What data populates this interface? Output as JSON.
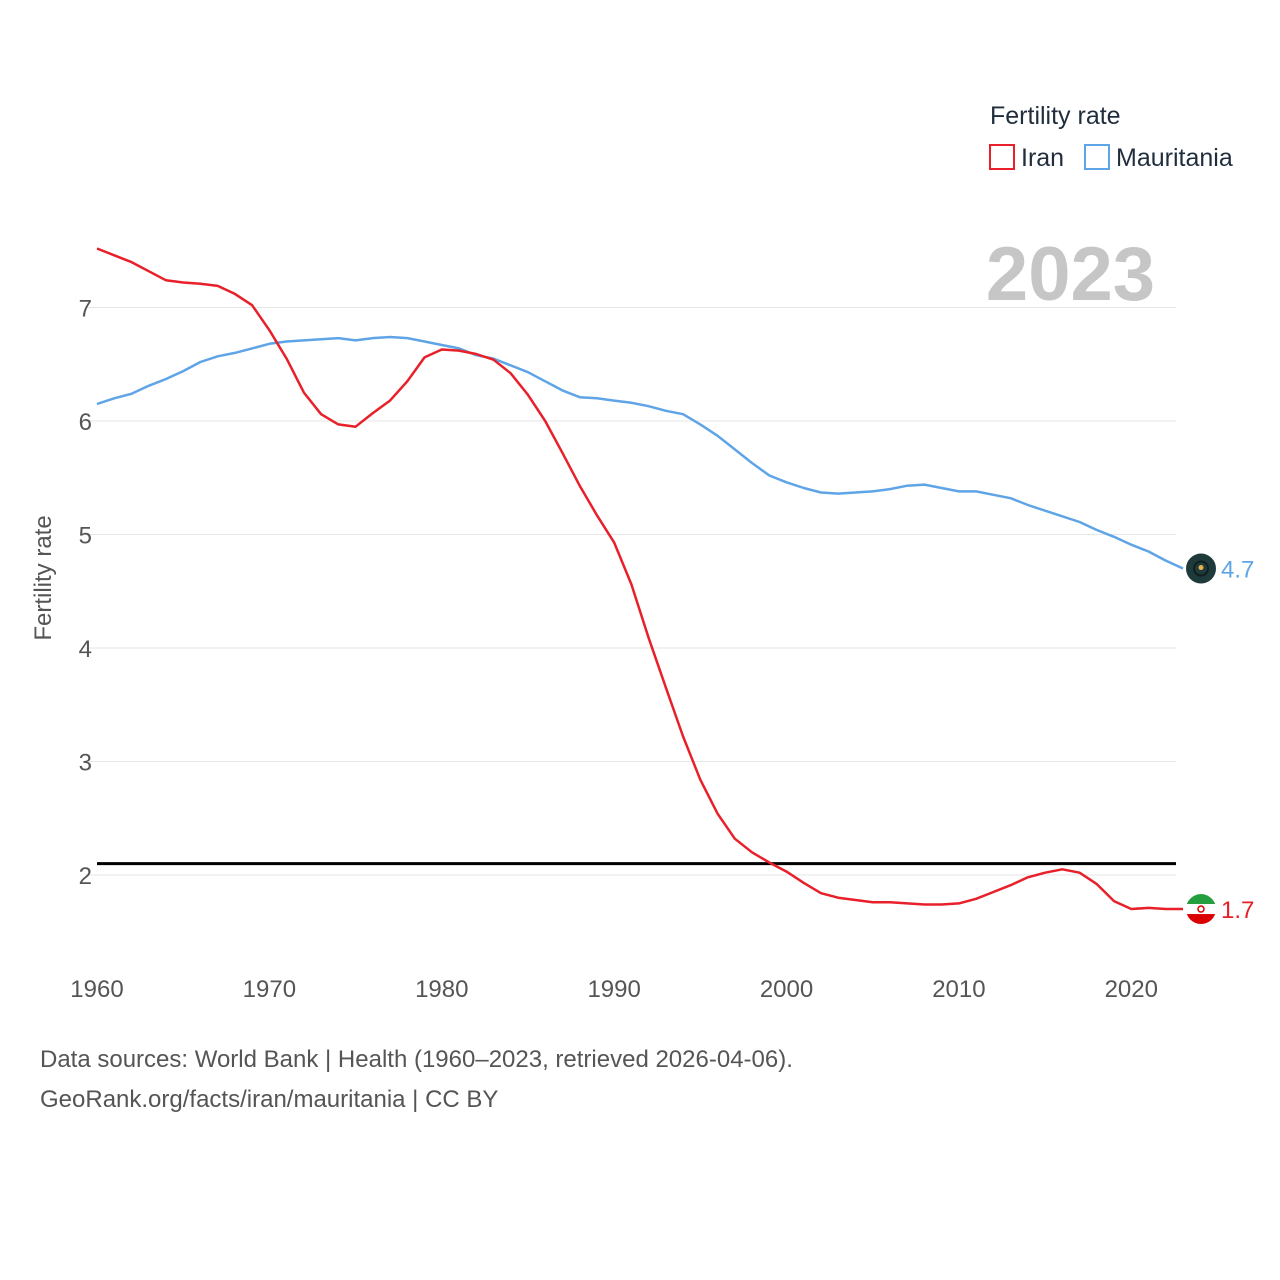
{
  "chart_data": {
    "type": "line",
    "title": "",
    "xlabel": "",
    "ylabel": "Fertility rate",
    "legend_title": "Fertility rate",
    "legend_position": "top-right",
    "year_label": "2023",
    "xlim": [
      1960,
      2023
    ],
    "ylim": [
      1.3,
      7.6
    ],
    "x_ticks": [
      1960,
      1970,
      1980,
      1990,
      2000,
      2010,
      2020
    ],
    "y_ticks": [
      2,
      3,
      4,
      5,
      6,
      7
    ],
    "grid": true,
    "reference_line": {
      "y": 2.1,
      "color": "#000000"
    },
    "x": [
      1960,
      1961,
      1962,
      1963,
      1964,
      1965,
      1966,
      1967,
      1968,
      1969,
      1970,
      1971,
      1972,
      1973,
      1974,
      1975,
      1976,
      1977,
      1978,
      1979,
      1980,
      1981,
      1982,
      1983,
      1984,
      1985,
      1986,
      1987,
      1988,
      1989,
      1990,
      1991,
      1992,
      1993,
      1994,
      1995,
      1996,
      1997,
      1998,
      1999,
      2000,
      2001,
      2002,
      2003,
      2004,
      2005,
      2006,
      2007,
      2008,
      2009,
      2010,
      2011,
      2012,
      2013,
      2014,
      2015,
      2016,
      2017,
      2018,
      2019,
      2020,
      2021,
      2022,
      2023
    ],
    "series": [
      {
        "name": "Iran",
        "color": "#e8202a",
        "end_label": "1.7",
        "values": [
          7.52,
          7.46,
          7.4,
          7.32,
          7.24,
          7.22,
          7.21,
          7.19,
          7.12,
          7.02,
          6.8,
          6.55,
          6.25,
          6.06,
          5.97,
          5.95,
          6.07,
          6.18,
          6.35,
          6.56,
          6.63,
          6.62,
          6.59,
          6.54,
          6.42,
          6.23,
          6.0,
          5.72,
          5.43,
          5.17,
          4.93,
          4.56,
          4.09,
          3.65,
          3.22,
          2.84,
          2.54,
          2.32,
          2.2,
          2.11,
          2.03,
          1.93,
          1.84,
          1.8,
          1.78,
          1.76,
          1.76,
          1.75,
          1.74,
          1.74,
          1.75,
          1.79,
          1.85,
          1.91,
          1.98,
          2.02,
          2.05,
          2.02,
          1.92,
          1.77,
          1.7,
          1.71,
          1.7,
          1.7
        ]
      },
      {
        "name": "Mauritania",
        "color": "#5fa4e6",
        "end_label": "4.7",
        "values": [
          6.15,
          6.2,
          6.24,
          6.31,
          6.37,
          6.44,
          6.52,
          6.57,
          6.6,
          6.64,
          6.68,
          6.7,
          6.71,
          6.72,
          6.73,
          6.71,
          6.73,
          6.74,
          6.73,
          6.7,
          6.67,
          6.64,
          6.58,
          6.55,
          6.49,
          6.43,
          6.35,
          6.27,
          6.21,
          6.2,
          6.18,
          6.16,
          6.13,
          6.09,
          6.06,
          5.97,
          5.87,
          5.75,
          5.63,
          5.52,
          5.46,
          5.41,
          5.37,
          5.36,
          5.37,
          5.38,
          5.4,
          5.43,
          5.44,
          5.41,
          5.38,
          5.38,
          5.35,
          5.32,
          5.26,
          5.21,
          5.16,
          5.11,
          5.04,
          4.98,
          4.91,
          4.85,
          4.77,
          4.7
        ]
      }
    ]
  },
  "footer": {
    "line1": "Data sources: World Bank | Health (1960–2023, retrieved 2026-04-06).",
    "line2": "GeoRank.org/facts/iran/mauritania | CC BY"
  }
}
